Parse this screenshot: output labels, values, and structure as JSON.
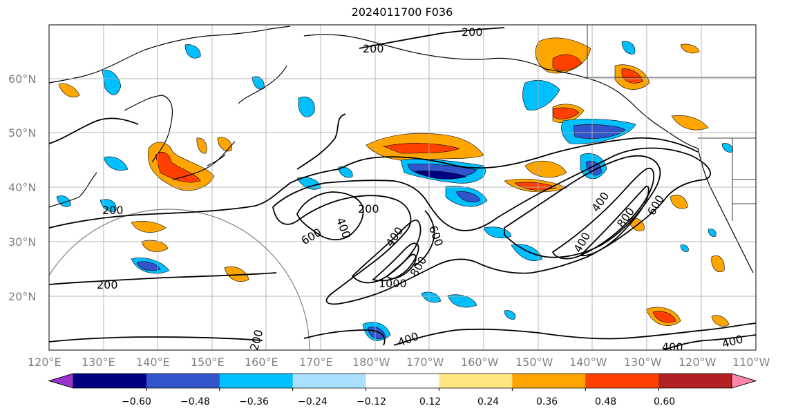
{
  "title": "2024011700 F036",
  "lat_labels": [
    "60°N",
    "50°N",
    "40°N",
    "30°N",
    "20°N"
  ],
  "lon_labels": [
    "120°E",
    "130°E",
    "140°E",
    "150°E",
    "160°E",
    "170°E",
    "180°W",
    "170°W",
    "160°W",
    "150°W",
    "140°W",
    "130°W",
    "120°W",
    "110°W"
  ],
  "colorbar": {
    "ticks": [
      "−0.60",
      "−0.48",
      "−0.36",
      "−0.24",
      "−0.12",
      "0.12",
      "0.24",
      "0.36",
      "0.48",
      "0.60"
    ],
    "colors": [
      "#9933cc",
      "#000080",
      "#3355cc",
      "#00bfff",
      "#aae0ff",
      "#ffffff",
      "#ffe680",
      "#ffa500",
      "#ff4000",
      "#b22222",
      "#ff88aa"
    ]
  },
  "contour_labels": [
    "200",
    "200",
    "200",
    "200",
    "200",
    "400",
    "600",
    "200",
    "400",
    "600",
    "1000",
    "800",
    "400",
    "400",
    "600",
    "800",
    "400",
    "400",
    "400",
    "200"
  ],
  "colors": {
    "grid": "#b0b0b0",
    "axis_label": "#808080",
    "coast": "#000000"
  }
}
